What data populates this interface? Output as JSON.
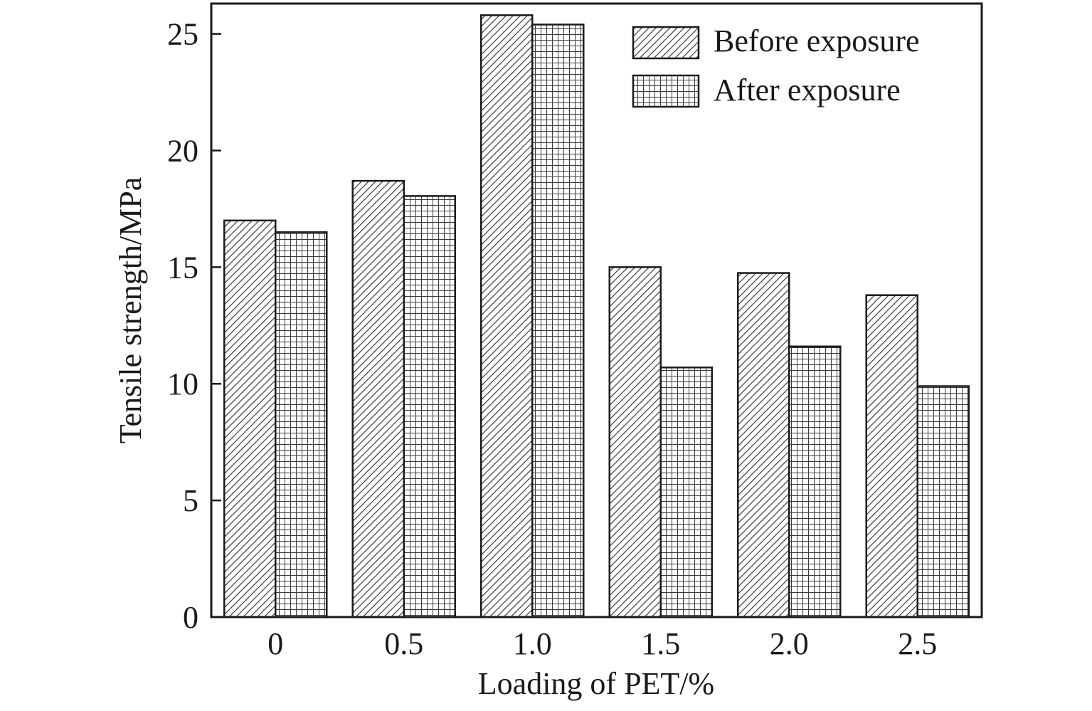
{
  "chart_data": {
    "type": "bar",
    "title": "",
    "xlabel": "Loading of PET/%",
    "ylabel": "Tensile strength/MPa",
    "categories": [
      "0",
      "0.5",
      "1.0",
      "1.5",
      "2.0",
      "2.5"
    ],
    "series": [
      {
        "name": "Before exposure",
        "pattern": "diagonal-hatch",
        "values": [
          17.0,
          18.7,
          25.8,
          15.0,
          14.75,
          13.8
        ]
      },
      {
        "name": "After exposure",
        "pattern": "crosshatch-grid",
        "values": [
          16.5,
          18.05,
          25.4,
          10.7,
          11.6,
          9.9
        ]
      }
    ],
    "yticks": [
      0,
      5,
      10,
      15,
      20,
      25
    ],
    "ylim": [
      0,
      26.3
    ],
    "grid": false,
    "legend_position": "top-right",
    "colors": {
      "axis": "#1a1a1a",
      "bar_fill": "#ffffff",
      "bar_pattern": "#333333"
    }
  }
}
